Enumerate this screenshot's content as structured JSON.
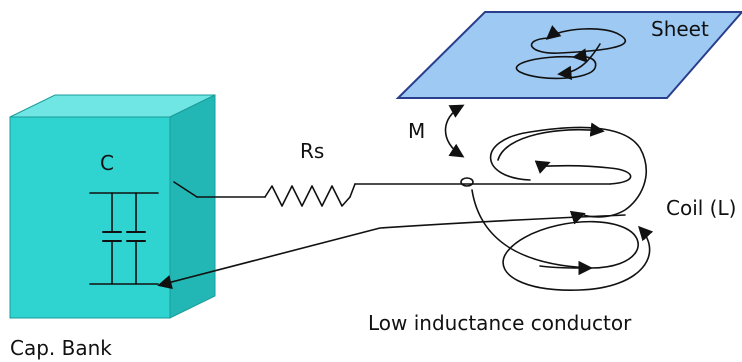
{
  "labels": {
    "sheet": "Sheet",
    "mutual": "M",
    "resistor": "Rs",
    "capacitor": "C",
    "coil": "Coil (L)",
    "conductor": "Low inductance conductor",
    "bank": "Cap. Bank"
  },
  "colors": {
    "cube_front": "#2fd3cf",
    "cube_top": "#6fe6e3",
    "cube_side": "#22b7b5",
    "sheet_fill": "#9ec9f2",
    "sheet_stroke": "#2a3f8c",
    "line": "#111111"
  }
}
